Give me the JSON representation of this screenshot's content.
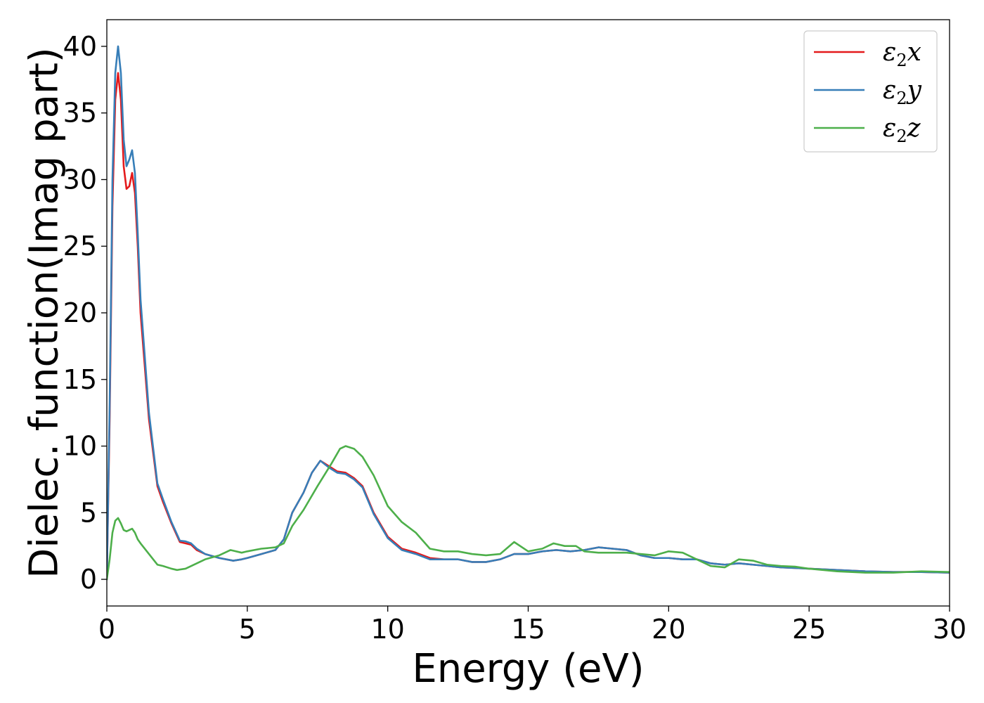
{
  "chart_data": {
    "type": "line",
    "title": "",
    "xlabel": "Energy (eV)",
    "ylabel": "Dielec. function(Imag part)",
    "xlim": [
      0,
      30
    ],
    "ylim": [
      -2,
      42
    ],
    "xticks": [
      0,
      5,
      10,
      15,
      20,
      25,
      30
    ],
    "yticks": [
      0,
      5,
      10,
      15,
      20,
      25,
      30,
      35,
      40
    ],
    "grid": false,
    "legend_position": "top-right",
    "series": [
      {
        "name": "ε2x",
        "legend_base": "ε",
        "legend_sub": "2",
        "legend_tail": "x",
        "color": "#e41a1c",
        "points": [
          [
            0,
            0
          ],
          [
            0.1,
            12
          ],
          [
            0.2,
            28
          ],
          [
            0.3,
            36
          ],
          [
            0.4,
            38
          ],
          [
            0.5,
            36
          ],
          [
            0.6,
            31
          ],
          [
            0.7,
            29.3
          ],
          [
            0.8,
            29.5
          ],
          [
            0.9,
            30.5
          ],
          [
            1.0,
            29
          ],
          [
            1.1,
            25
          ],
          [
            1.2,
            20
          ],
          [
            1.5,
            12
          ],
          [
            1.8,
            7
          ],
          [
            2.0,
            5.8
          ],
          [
            2.3,
            4.2
          ],
          [
            2.6,
            2.8
          ],
          [
            2.8,
            2.7
          ],
          [
            3.0,
            2.6
          ],
          [
            3.2,
            2.2
          ],
          [
            3.5,
            1.9
          ],
          [
            4.0,
            1.6
          ],
          [
            4.5,
            1.4
          ],
          [
            4.8,
            1.5
          ],
          [
            5.0,
            1.6
          ],
          [
            5.5,
            1.9
          ],
          [
            6.0,
            2.2
          ],
          [
            6.3,
            3.0
          ],
          [
            6.6,
            5.0
          ],
          [
            7.0,
            6.5
          ],
          [
            7.3,
            8.0
          ],
          [
            7.6,
            8.9
          ],
          [
            7.9,
            8.5
          ],
          [
            8.2,
            8.1
          ],
          [
            8.5,
            8.0
          ],
          [
            8.8,
            7.6
          ],
          [
            9.1,
            7.0
          ],
          [
            9.5,
            5.0
          ],
          [
            10.0,
            3.2
          ],
          [
            10.5,
            2.3
          ],
          [
            11.0,
            2.0
          ],
          [
            11.5,
            1.6
          ],
          [
            12.0,
            1.5
          ],
          [
            12.5,
            1.5
          ],
          [
            13.0,
            1.3
          ],
          [
            13.5,
            1.3
          ],
          [
            14.0,
            1.5
          ],
          [
            14.5,
            1.9
          ],
          [
            15.0,
            1.9
          ],
          [
            15.5,
            2.1
          ],
          [
            16.0,
            2.2
          ],
          [
            16.5,
            2.1
          ],
          [
            17.0,
            2.2
          ],
          [
            17.5,
            2.4
          ],
          [
            18.0,
            2.3
          ],
          [
            18.5,
            2.2
          ],
          [
            19.0,
            1.8
          ],
          [
            19.5,
            1.6
          ],
          [
            20.0,
            1.6
          ],
          [
            20.5,
            1.5
          ],
          [
            21.0,
            1.5
          ],
          [
            21.5,
            1.2
          ],
          [
            22.0,
            1.1
          ],
          [
            22.5,
            1.2
          ],
          [
            23.0,
            1.1
          ],
          [
            23.5,
            1.0
          ],
          [
            24.0,
            0.9
          ],
          [
            24.5,
            0.85
          ],
          [
            25.0,
            0.8
          ],
          [
            26.0,
            0.7
          ],
          [
            27.0,
            0.6
          ],
          [
            28.0,
            0.55
          ],
          [
            29.0,
            0.55
          ],
          [
            30.0,
            0.5
          ]
        ]
      },
      {
        "name": "ε2y",
        "legend_base": "ε",
        "legend_sub": "2",
        "legend_tail": "y",
        "color": "#377eb8",
        "points": [
          [
            0,
            0
          ],
          [
            0.1,
            13
          ],
          [
            0.2,
            30
          ],
          [
            0.3,
            38
          ],
          [
            0.4,
            40
          ],
          [
            0.5,
            38
          ],
          [
            0.6,
            33
          ],
          [
            0.7,
            31
          ],
          [
            0.8,
            31.5
          ],
          [
            0.9,
            32.2
          ],
          [
            1.0,
            30.5
          ],
          [
            1.1,
            26
          ],
          [
            1.2,
            21
          ],
          [
            1.5,
            12.5
          ],
          [
            1.8,
            7.2
          ],
          [
            2.0,
            6.0
          ],
          [
            2.3,
            4.3
          ],
          [
            2.6,
            2.9
          ],
          [
            2.8,
            2.85
          ],
          [
            3.0,
            2.7
          ],
          [
            3.2,
            2.3
          ],
          [
            3.5,
            1.9
          ],
          [
            4.0,
            1.6
          ],
          [
            4.5,
            1.4
          ],
          [
            4.8,
            1.5
          ],
          [
            5.0,
            1.6
          ],
          [
            5.5,
            1.9
          ],
          [
            6.0,
            2.2
          ],
          [
            6.3,
            3.0
          ],
          [
            6.6,
            5.0
          ],
          [
            7.0,
            6.5
          ],
          [
            7.3,
            8.0
          ],
          [
            7.6,
            8.9
          ],
          [
            7.9,
            8.4
          ],
          [
            8.2,
            8.0
          ],
          [
            8.5,
            7.9
          ],
          [
            8.8,
            7.5
          ],
          [
            9.1,
            6.9
          ],
          [
            9.5,
            4.9
          ],
          [
            10.0,
            3.1
          ],
          [
            10.5,
            2.2
          ],
          [
            11.0,
            1.9
          ],
          [
            11.5,
            1.5
          ],
          [
            12.0,
            1.5
          ],
          [
            12.5,
            1.5
          ],
          [
            13.0,
            1.3
          ],
          [
            13.5,
            1.3
          ],
          [
            14.0,
            1.5
          ],
          [
            14.5,
            1.9
          ],
          [
            15.0,
            1.9
          ],
          [
            15.5,
            2.1
          ],
          [
            16.0,
            2.2
          ],
          [
            16.5,
            2.1
          ],
          [
            17.0,
            2.2
          ],
          [
            17.5,
            2.4
          ],
          [
            18.0,
            2.3
          ],
          [
            18.5,
            2.2
          ],
          [
            19.0,
            1.8
          ],
          [
            19.5,
            1.6
          ],
          [
            20.0,
            1.6
          ],
          [
            20.5,
            1.5
          ],
          [
            21.0,
            1.5
          ],
          [
            21.5,
            1.2
          ],
          [
            22.0,
            1.1
          ],
          [
            22.5,
            1.2
          ],
          [
            23.0,
            1.1
          ],
          [
            23.5,
            1.0
          ],
          [
            24.0,
            0.9
          ],
          [
            24.5,
            0.85
          ],
          [
            25.0,
            0.8
          ],
          [
            26.0,
            0.7
          ],
          [
            27.0,
            0.6
          ],
          [
            28.0,
            0.55
          ],
          [
            29.0,
            0.55
          ],
          [
            30.0,
            0.5
          ]
        ]
      },
      {
        "name": "ε2z",
        "legend_base": "ε",
        "legend_sub": "2",
        "legend_tail": "z",
        "color": "#4daf4a",
        "points": [
          [
            0,
            0
          ],
          [
            0.1,
            1.5
          ],
          [
            0.2,
            3.5
          ],
          [
            0.3,
            4.4
          ],
          [
            0.4,
            4.6
          ],
          [
            0.5,
            4.2
          ],
          [
            0.6,
            3.7
          ],
          [
            0.7,
            3.6
          ],
          [
            0.8,
            3.7
          ],
          [
            0.9,
            3.8
          ],
          [
            1.0,
            3.5
          ],
          [
            1.1,
            3.0
          ],
          [
            1.2,
            2.7
          ],
          [
            1.5,
            1.9
          ],
          [
            1.8,
            1.1
          ],
          [
            2.0,
            1.0
          ],
          [
            2.3,
            0.8
          ],
          [
            2.5,
            0.7
          ],
          [
            2.8,
            0.8
          ],
          [
            3.0,
            1.0
          ],
          [
            3.5,
            1.5
          ],
          [
            4.0,
            1.8
          ],
          [
            4.4,
            2.2
          ],
          [
            4.8,
            2.0
          ],
          [
            5.0,
            2.1
          ],
          [
            5.5,
            2.3
          ],
          [
            6.0,
            2.4
          ],
          [
            6.3,
            2.7
          ],
          [
            6.6,
            4.0
          ],
          [
            7.0,
            5.2
          ],
          [
            7.5,
            7.0
          ],
          [
            8.0,
            8.7
          ],
          [
            8.3,
            9.8
          ],
          [
            8.5,
            10.0
          ],
          [
            8.8,
            9.8
          ],
          [
            9.1,
            9.2
          ],
          [
            9.5,
            7.8
          ],
          [
            10.0,
            5.5
          ],
          [
            10.5,
            4.3
          ],
          [
            11.0,
            3.5
          ],
          [
            11.5,
            2.3
          ],
          [
            12.0,
            2.1
          ],
          [
            12.5,
            2.1
          ],
          [
            13.0,
            1.9
          ],
          [
            13.5,
            1.8
          ],
          [
            14.0,
            1.9
          ],
          [
            14.5,
            2.8
          ],
          [
            15.0,
            2.1
          ],
          [
            15.5,
            2.3
          ],
          [
            15.9,
            2.7
          ],
          [
            16.3,
            2.5
          ],
          [
            16.7,
            2.5
          ],
          [
            17.0,
            2.1
          ],
          [
            17.5,
            2.0
          ],
          [
            18.0,
            2.0
          ],
          [
            18.5,
            2.0
          ],
          [
            19.0,
            1.9
          ],
          [
            19.5,
            1.8
          ],
          [
            20.0,
            2.1
          ],
          [
            20.5,
            2.0
          ],
          [
            21.0,
            1.5
          ],
          [
            21.5,
            1.0
          ],
          [
            22.0,
            0.9
          ],
          [
            22.5,
            1.5
          ],
          [
            23.0,
            1.4
          ],
          [
            23.5,
            1.1
          ],
          [
            24.0,
            1.0
          ],
          [
            24.5,
            0.95
          ],
          [
            25.0,
            0.8
          ],
          [
            26.0,
            0.6
          ],
          [
            27.0,
            0.5
          ],
          [
            28.0,
            0.5
          ],
          [
            29.0,
            0.6
          ],
          [
            30.0,
            0.55
          ]
        ]
      }
    ]
  }
}
